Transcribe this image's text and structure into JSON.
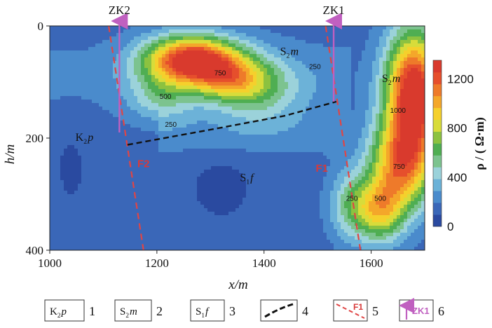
{
  "chart_data": {
    "type": "heatmap",
    "title": "",
    "xlabel": "x/m",
    "ylabel": "h/m",
    "xlim": [
      1000,
      1700
    ],
    "ylim": [
      400,
      0
    ],
    "x_ticks": [
      "1000",
      "1200",
      "1400",
      "1600"
    ],
    "y_ticks": [
      "0",
      "200",
      "400"
    ],
    "colorbar": {
      "label": "ρ / ( Ω·m)",
      "ticks": [
        "0",
        "400",
        "800",
        "1200"
      ],
      "range": [
        0,
        1350
      ],
      "colors": [
        "#2a4aa0",
        "#3a67b8",
        "#4a8bcc",
        "#6cb2d8",
        "#9bd2da",
        "#7cc38f",
        "#4fae52",
        "#8cc240",
        "#d8dc3a",
        "#f5d02c",
        "#f4a72a",
        "#ee7a2a",
        "#e64f2c",
        "#d93a2d"
      ]
    },
    "boreholes": [
      {
        "name": "ZK2",
        "x": 1130
      },
      {
        "name": "ZK1",
        "x": 1530
      }
    ],
    "faults": [
      {
        "name": "F1",
        "points": [
          [
            1515,
            0
          ],
          [
            1580,
            400
          ]
        ]
      },
      {
        "name": "F2",
        "points": [
          [
            1110,
            0
          ],
          [
            1175,
            400
          ]
        ]
      }
    ],
    "boundary_line": [
      [
        1145,
        212
      ],
      [
        1300,
        185
      ],
      [
        1440,
        160
      ],
      [
        1535,
        135
      ]
    ],
    "units": [
      {
        "label": "K₂p",
        "x": 1048,
        "y": 205
      },
      {
        "label": "S₂m",
        "x": 1430,
        "y": 52
      },
      {
        "label": "S₂m",
        "x": 1620,
        "y": 100
      },
      {
        "label": "S₁f",
        "x": 1355,
        "y": 277
      }
    ],
    "contour_labels": [
      {
        "text": "750",
        "x": 1318,
        "y": 88
      },
      {
        "text": "500",
        "x": 1216,
        "y": 130
      },
      {
        "text": "250",
        "x": 1226,
        "y": 180
      },
      {
        "text": "250",
        "x": 1495,
        "y": 77
      },
      {
        "text": "1000",
        "x": 1650,
        "y": 155
      },
      {
        "text": "750",
        "x": 1652,
        "y": 255
      },
      {
        "text": "250",
        "x": 1564,
        "y": 312
      },
      {
        "text": "500",
        "x": 1617,
        "y": 312
      }
    ],
    "field": [
      [
        1265,
        60,
        1180,
        85,
        42
      ],
      [
        1335,
        95,
        520,
        70,
        40
      ],
      [
        1210,
        125,
        280,
        60,
        45
      ],
      [
        1680,
        120,
        1250,
        52,
        110
      ],
      [
        1655,
        250,
        820,
        60,
        80
      ],
      [
        1615,
        330,
        650,
        45,
        55
      ],
      [
        1560,
        320,
        330,
        38,
        60
      ],
      [
        1390,
        115,
        300,
        80,
        60
      ]
    ],
    "legend": [
      {
        "sym": "K₂p",
        "num": "1"
      },
      {
        "sym": "S₂m",
        "num": "2"
      },
      {
        "sym": "S₁f",
        "num": "3"
      },
      {
        "sym": "",
        "num": "4"
      },
      {
        "sym": "F1",
        "num": "5"
      },
      {
        "sym": "ZK1",
        "num": "6"
      }
    ]
  }
}
